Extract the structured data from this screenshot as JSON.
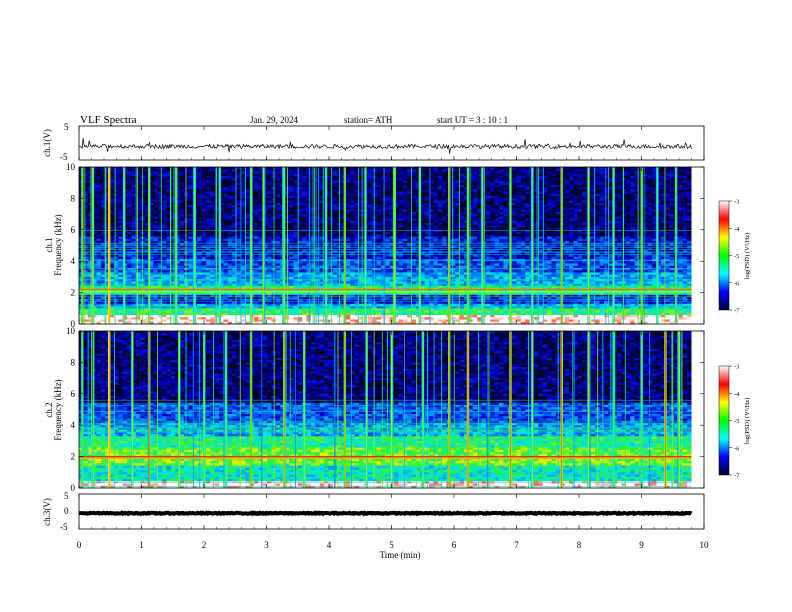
{
  "header": {
    "title": "VLF  Spectra",
    "date": "Jan. 29, 2024",
    "station": "station= ATH",
    "start": "start  UT  =   3  : 10 : 1"
  },
  "colors": {
    "noise_floor": "#0a1a8c",
    "burst": "#30e040",
    "line": "#ff3300",
    "trace": "#000000"
  },
  "colorbar": {
    "label": "log(PSD) (V²/Hz)",
    "ticks": [
      "-3",
      "-4",
      "-5",
      "-6",
      "-7"
    ],
    "stops": [
      "#ffffff",
      "#ff0000",
      "#ffff00",
      "#00ff00",
      "#00ffff",
      "#0000ff",
      "#000033"
    ]
  },
  "chart_data": [
    {
      "type": "line",
      "panel": "ch1-waveform",
      "ylabel": "ch.1(V)",
      "ylim": [
        -5,
        5
      ],
      "yticks": [
        "5",
        "-5"
      ],
      "x_range": [
        0,
        9.8
      ],
      "baseline": -1.0,
      "amplitude": 0.6
    },
    {
      "type": "heatmap",
      "panel": "ch1-spectrogram",
      "ylabel_prefix": "ch.1",
      "ylabel": "Frequency  (kHz)",
      "ylim": [
        0,
        10
      ],
      "yticks": [
        "0",
        "2",
        "4",
        "6",
        "8",
        "10"
      ],
      "x_range": [
        0,
        9.8
      ],
      "colorbar_range": [
        -7,
        -3
      ],
      "bands": [
        {
          "f_lo": 0.0,
          "f_hi": 0.6,
          "level": -3.0
        },
        {
          "f_lo": 0.6,
          "f_hi": 1.0,
          "level": -4.9
        },
        {
          "f_lo": 1.0,
          "f_hi": 1.3,
          "level": -5.6
        },
        {
          "f_lo": 1.3,
          "f_hi": 1.9,
          "level": -6.2
        },
        {
          "f_lo": 1.9,
          "f_hi": 2.4,
          "level": -5.0
        },
        {
          "f_lo": 2.4,
          "f_hi": 3.3,
          "level": -5.6
        },
        {
          "f_lo": 3.3,
          "f_hi": 4.2,
          "level": -6.0
        },
        {
          "f_lo": 4.2,
          "f_hi": 5.6,
          "level": -6.3
        },
        {
          "f_lo": 5.6,
          "f_hi": 10.0,
          "level": -6.7
        }
      ],
      "lines": [
        {
          "freq": 2.2,
          "level": -3.8
        },
        {
          "freq": 2.05,
          "level": -4.3
        }
      ],
      "bursts": [
        {
          "t": 0.05,
          "level": -4.8
        },
        {
          "t": 0.22,
          "level": -5.0
        },
        {
          "t": 0.48,
          "level": -4.2
        },
        {
          "t": 0.72,
          "level": -5.2
        },
        {
          "t": 1.12,
          "level": -5.0
        },
        {
          "t": 1.55,
          "level": -5.1
        },
        {
          "t": 1.85,
          "level": -5.2
        },
        {
          "t": 2.25,
          "level": -5.3
        },
        {
          "t": 2.75,
          "level": -5.0
        },
        {
          "t": 2.95,
          "level": -4.9
        },
        {
          "t": 3.28,
          "level": -5.1
        },
        {
          "t": 3.95,
          "level": -5.2
        },
        {
          "t": 4.25,
          "level": -4.8
        },
        {
          "t": 4.58,
          "level": -5.2
        },
        {
          "t": 5.05,
          "level": -5.0
        },
        {
          "t": 5.45,
          "level": -5.1
        },
        {
          "t": 5.92,
          "level": -4.7
        },
        {
          "t": 6.22,
          "level": -4.9
        },
        {
          "t": 6.45,
          "level": -5.2
        },
        {
          "t": 6.9,
          "level": -4.9
        },
        {
          "t": 7.25,
          "level": -5.2
        },
        {
          "t": 7.72,
          "level": -4.7
        },
        {
          "t": 8.15,
          "level": -5.0
        },
        {
          "t": 8.55,
          "level": -5.2
        },
        {
          "t": 9.0,
          "level": -4.8
        },
        {
          "t": 9.25,
          "level": -5.3
        },
        {
          "t": 9.55,
          "level": -4.9
        }
      ]
    },
    {
      "type": "heatmap",
      "panel": "ch2-spectrogram",
      "ylabel_prefix": "ch.2",
      "ylabel": "Frequency  (kHz)",
      "ylim": [
        0,
        10
      ],
      "yticks": [
        "0",
        "2",
        "4",
        "6",
        "8",
        "10"
      ],
      "x_range": [
        0,
        9.8
      ],
      "colorbar_range": [
        -7,
        -3
      ],
      "bands": [
        {
          "f_lo": 0.0,
          "f_hi": 0.5,
          "level": -3.0
        },
        {
          "f_lo": 0.5,
          "f_hi": 1.5,
          "level": -5.2
        },
        {
          "f_lo": 1.5,
          "f_hi": 2.6,
          "level": -4.6
        },
        {
          "f_lo": 2.6,
          "f_hi": 3.3,
          "level": -5.0
        },
        {
          "f_lo": 3.3,
          "f_hi": 4.2,
          "level": -5.6
        },
        {
          "f_lo": 4.2,
          "f_hi": 5.5,
          "level": -6.0
        },
        {
          "f_lo": 5.5,
          "f_hi": 10.0,
          "level": -6.7
        }
      ],
      "lines": [
        {
          "freq": 2.0,
          "level": -3.6
        },
        {
          "freq": 1.9,
          "level": -4.0
        }
      ],
      "bursts": [
        {
          "t": 0.05,
          "level": -4.9
        },
        {
          "t": 0.48,
          "level": -4.2
        },
        {
          "t": 0.85,
          "level": -5.1
        },
        {
          "t": 1.12,
          "level": -4.5
        },
        {
          "t": 1.6,
          "level": -5.0
        },
        {
          "t": 2.0,
          "level": -5.2
        },
        {
          "t": 2.35,
          "level": -5.1
        },
        {
          "t": 2.75,
          "level": -4.8
        },
        {
          "t": 3.28,
          "level": -4.6
        },
        {
          "t": 3.6,
          "level": -5.1
        },
        {
          "t": 4.25,
          "level": -4.7
        },
        {
          "t": 4.6,
          "level": -5.1
        },
        {
          "t": 5.0,
          "level": -5.0
        },
        {
          "t": 5.5,
          "level": -5.1
        },
        {
          "t": 5.92,
          "level": -4.6
        },
        {
          "t": 6.22,
          "level": -4.4
        },
        {
          "t": 6.9,
          "level": -4.5
        },
        {
          "t": 7.25,
          "level": -5.1
        },
        {
          "t": 7.72,
          "level": -4.4
        },
        {
          "t": 8.15,
          "level": -5.0
        },
        {
          "t": 8.55,
          "level": -5.1
        },
        {
          "t": 9.0,
          "level": -4.8
        },
        {
          "t": 9.38,
          "level": -4.4
        },
        {
          "t": 9.6,
          "level": -5.0
        }
      ]
    },
    {
      "type": "line",
      "panel": "ch3-waveform",
      "ylabel": "ch.3(V)",
      "ylim": [
        -5,
        5
      ],
      "yticks": [
        "5",
        "0",
        "-5"
      ],
      "x_range": [
        0,
        9.8
      ],
      "baseline": -0.5,
      "amplitude": 0.15
    }
  ],
  "x_axis": {
    "label": "Time  (min)",
    "xlim": [
      0,
      10
    ],
    "ticks": [
      "0",
      "1",
      "2",
      "3",
      "4",
      "5",
      "6",
      "7",
      "8",
      "9",
      "10"
    ]
  }
}
